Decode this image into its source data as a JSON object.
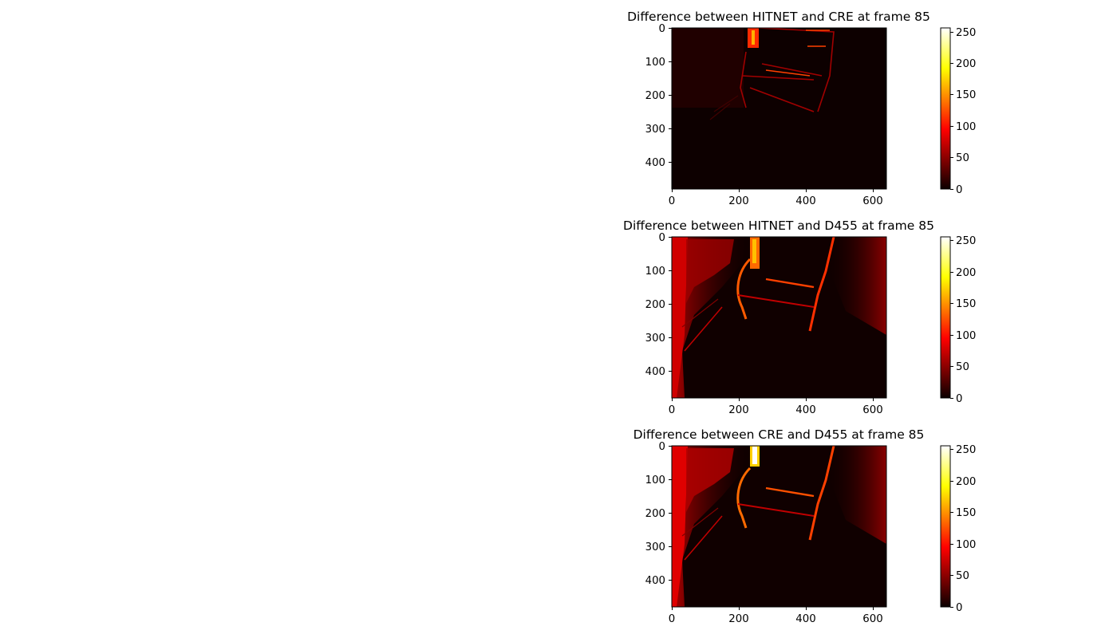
{
  "chart_data": [
    {
      "type": "heatmap",
      "title": "Difference between HITNET and CRE at frame 85",
      "xlabel": "",
      "ylabel": "",
      "xlim": [
        0,
        640
      ],
      "ylim": [
        480,
        0
      ],
      "x_ticks": [
        0,
        200,
        400,
        600
      ],
      "y_ticks": [
        0,
        100,
        200,
        300,
        400
      ],
      "colormap": "hot",
      "colorbar": {
        "min": 0,
        "max": 255,
        "ticks": [
          0,
          50,
          100,
          150,
          200,
          250
        ]
      },
      "notes": "mostly near-zero; bright edges around chair outline and top-left post"
    },
    {
      "type": "heatmap",
      "title": "Difference between HITNET and D455 at frame 85",
      "xlabel": "",
      "ylabel": "",
      "xlim": [
        0,
        640
      ],
      "ylim": [
        480,
        0
      ],
      "x_ticks": [
        0,
        200,
        400,
        600
      ],
      "y_ticks": [
        0,
        100,
        200,
        300,
        400
      ],
      "colormap": "hot",
      "colorbar": {
        "min": 0,
        "max": 255,
        "ticks": [
          0,
          50,
          100,
          150,
          200,
          250
        ]
      }
    },
    {
      "type": "heatmap",
      "title": "Difference between CRE and D455 at frame 85",
      "xlabel": "",
      "ylabel": "",
      "xlim": [
        0,
        640
      ],
      "ylim": [
        480,
        0
      ],
      "x_ticks": [
        0,
        200,
        400,
        600
      ],
      "y_ticks": [
        0,
        100,
        200,
        300,
        400
      ],
      "colormap": "hot",
      "colorbar": {
        "min": 0,
        "max": 255,
        "ticks": [
          0,
          50,
          100,
          150,
          200,
          250
        ]
      }
    }
  ]
}
